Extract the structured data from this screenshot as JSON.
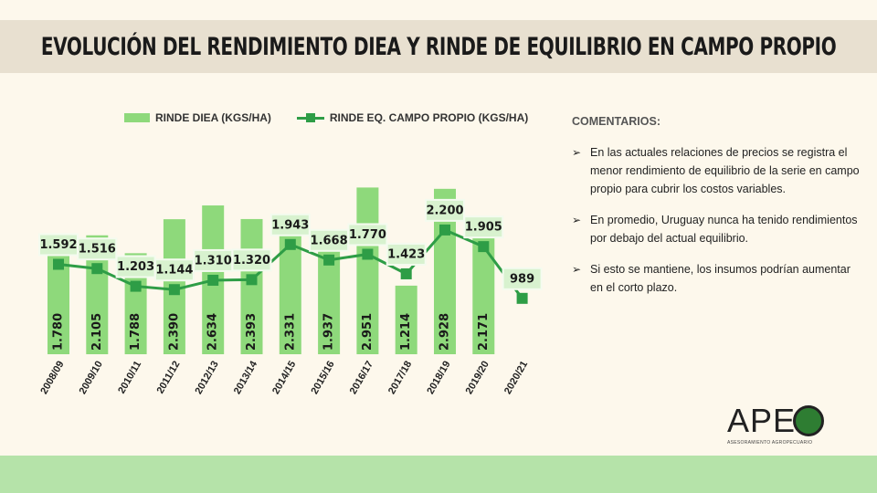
{
  "header": {
    "title": "EVOLUCIÓN DEL RENDIMIENTO DIEA Y RINDE DE EQUILIBRIO EN CAMPO PROPIO"
  },
  "chart_data": {
    "type": "bar",
    "title": "EVOLUCIÓN DEL RENDIMIENTO DIEA Y RINDE DE EQUILIBRIO EN CAMPO PROPIO",
    "categories": [
      "2008/09",
      "2009/10",
      "2010/11",
      "2011/12",
      "2012/13",
      "2013/14",
      "2014/15",
      "2015/16",
      "2016/17",
      "2017/18",
      "2018/19",
      "2019/20",
      "2020/21"
    ],
    "series": [
      {
        "name": "RINDE DIEA (KGS/HA)",
        "type": "bar",
        "color": "#8ed97b",
        "values": [
          1780,
          2105,
          1788,
          2390,
          2634,
          2393,
          2331,
          1937,
          2951,
          1214,
          2928,
          2171,
          null
        ],
        "labels": [
          "1.780",
          "2.105",
          "1.788",
          "2.390",
          "2.634",
          "2.393",
          "2.331",
          "1.937",
          "2.951",
          "1.214",
          "2.928",
          "2.171",
          ""
        ]
      },
      {
        "name": "RINDE EQ. CAMPO PROPIO (KGS/HA)",
        "type": "line",
        "color": "#2e9d46",
        "values": [
          1592,
          1516,
          1203,
          1144,
          1310,
          1320,
          1943,
          1668,
          1770,
          1423,
          2200,
          1905,
          989
        ],
        "labels": [
          "1.592",
          "1.516",
          "1.203",
          "1.144",
          "1.310",
          "1.320",
          "1.943",
          "1.668",
          "1.770",
          "1.423",
          "2.200",
          "1.905",
          "989"
        ]
      }
    ],
    "xlabel": "",
    "ylabel": "",
    "ylim": [
      0,
      3200
    ],
    "legend": "top"
  },
  "comments": {
    "heading": "COMENTARIOS:",
    "items": [
      "En las actuales relaciones de precios se registra el menor rendimiento de equilibrio de la serie en campo propio para cubrir los costos variables.",
      "En promedio, Uruguay nunca ha tenido rendimientos por debajo del actual equilibrio.",
      "Si esto se mantiene, los insumos podrían aumentar en el corto plazo."
    ]
  },
  "logo": {
    "text": "APE",
    "tagline": "ASESORAMIENTO AGROPECUARIO"
  }
}
